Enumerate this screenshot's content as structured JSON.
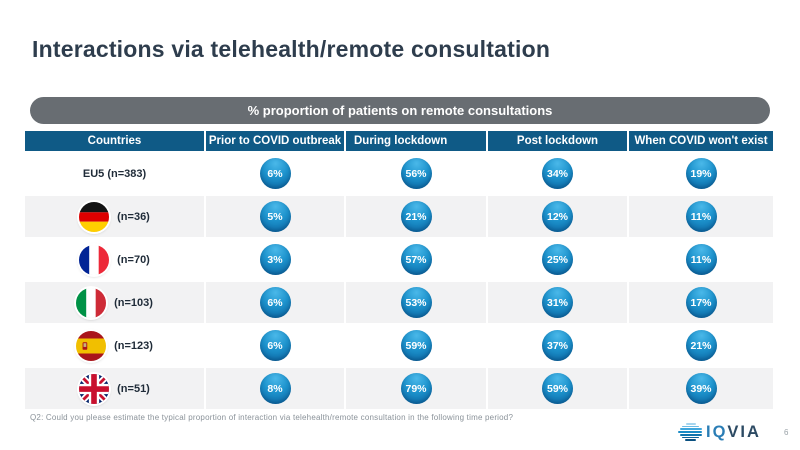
{
  "slide": {
    "title": "Interactions via telehealth/remote consultation",
    "banner": "% proportion of patients on remote consultations",
    "footnote": "Q2: Could you please estimate the typical proportion of interaction via telehealth/remote consultation in the following time period?",
    "page_number": "6",
    "logo": {
      "text_iq": "IQ",
      "text_via": "VIA"
    }
  },
  "colors": {
    "header_blue": "#0f5a86",
    "banner_gray": "#686d72",
    "row_alt_gray": "#f2f2f3",
    "bubble_light": "#4ab8e9",
    "bubble_dark": "#0a63a0",
    "title_text": "#2e3d4d"
  },
  "chart_data": {
    "type": "table",
    "title": "% proportion of patients on remote consultations",
    "columns": [
      "Countries",
      "Prior to COVID outbreak",
      "During lockdown",
      "Post lockdown",
      "When COVID won't exist"
    ],
    "rows": [
      {
        "label": "EU5 (n=383)",
        "flag": "none",
        "values": [
          "6%",
          "56%",
          "34%",
          "19%"
        ]
      },
      {
        "label": "(n=36)",
        "flag": "germany",
        "values": [
          "5%",
          "21%",
          "12%",
          "11%"
        ]
      },
      {
        "label": "(n=70)",
        "flag": "france",
        "values": [
          "3%",
          "57%",
          "25%",
          "11%"
        ]
      },
      {
        "label": "(n=103)",
        "flag": "italy",
        "values": [
          "6%",
          "53%",
          "31%",
          "17%"
        ]
      },
      {
        "label": "(n=123)",
        "flag": "spain",
        "values": [
          "6%",
          "59%",
          "37%",
          "21%"
        ]
      },
      {
        "label": "(n=51)",
        "flag": "uk",
        "values": [
          "8%",
          "79%",
          "59%",
          "39%"
        ]
      }
    ]
  }
}
